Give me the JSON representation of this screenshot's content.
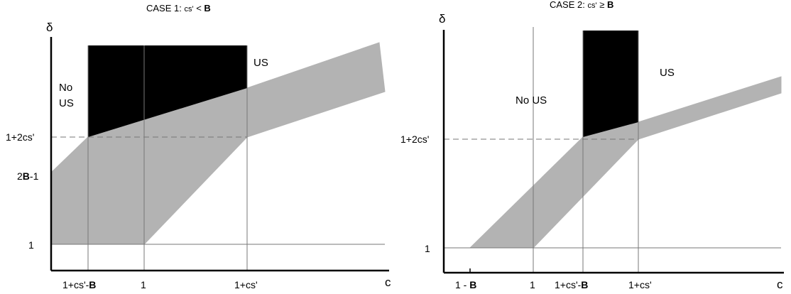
{
  "colors": {
    "gray_band": "#b3b3b3",
    "black_region": "#000000",
    "lines": "#000000",
    "grid": "#777777"
  },
  "case1": {
    "title_prefix": "CASE 1: ",
    "title_cs": "cs'",
    "title_rel": " < ",
    "title_b": "B",
    "y_axis": "δ",
    "x_axis": "c",
    "region_no": "No",
    "region_us_left": "US",
    "region_us_right": "US",
    "ytick_top": "1+2cs'",
    "ytick_mid_b": "2",
    "ytick_mid_bold": "B",
    "ytick_mid_rest": "-1",
    "ytick_one": "1",
    "xtick_a_pre": "1+cs'-",
    "xtick_a_bold": "B",
    "xtick_one": "1",
    "xtick_c": "1+cs'"
  },
  "case2": {
    "title_prefix": "CASE 2: ",
    "title_cs": "cs'",
    "title_rel": " ≥ ",
    "title_b": "B",
    "y_axis": "δ",
    "x_axis": "c",
    "region_no_us": "No US",
    "region_us": "US",
    "ytick_top": "1+2cs'",
    "ytick_one": "1",
    "xtick_a_pre": "1 - ",
    "xtick_a_bold": "B",
    "xtick_one": "1",
    "xtick_b_pre": "1+cs'-",
    "xtick_b_bold": "B",
    "xtick_c": "1+cs'"
  }
}
